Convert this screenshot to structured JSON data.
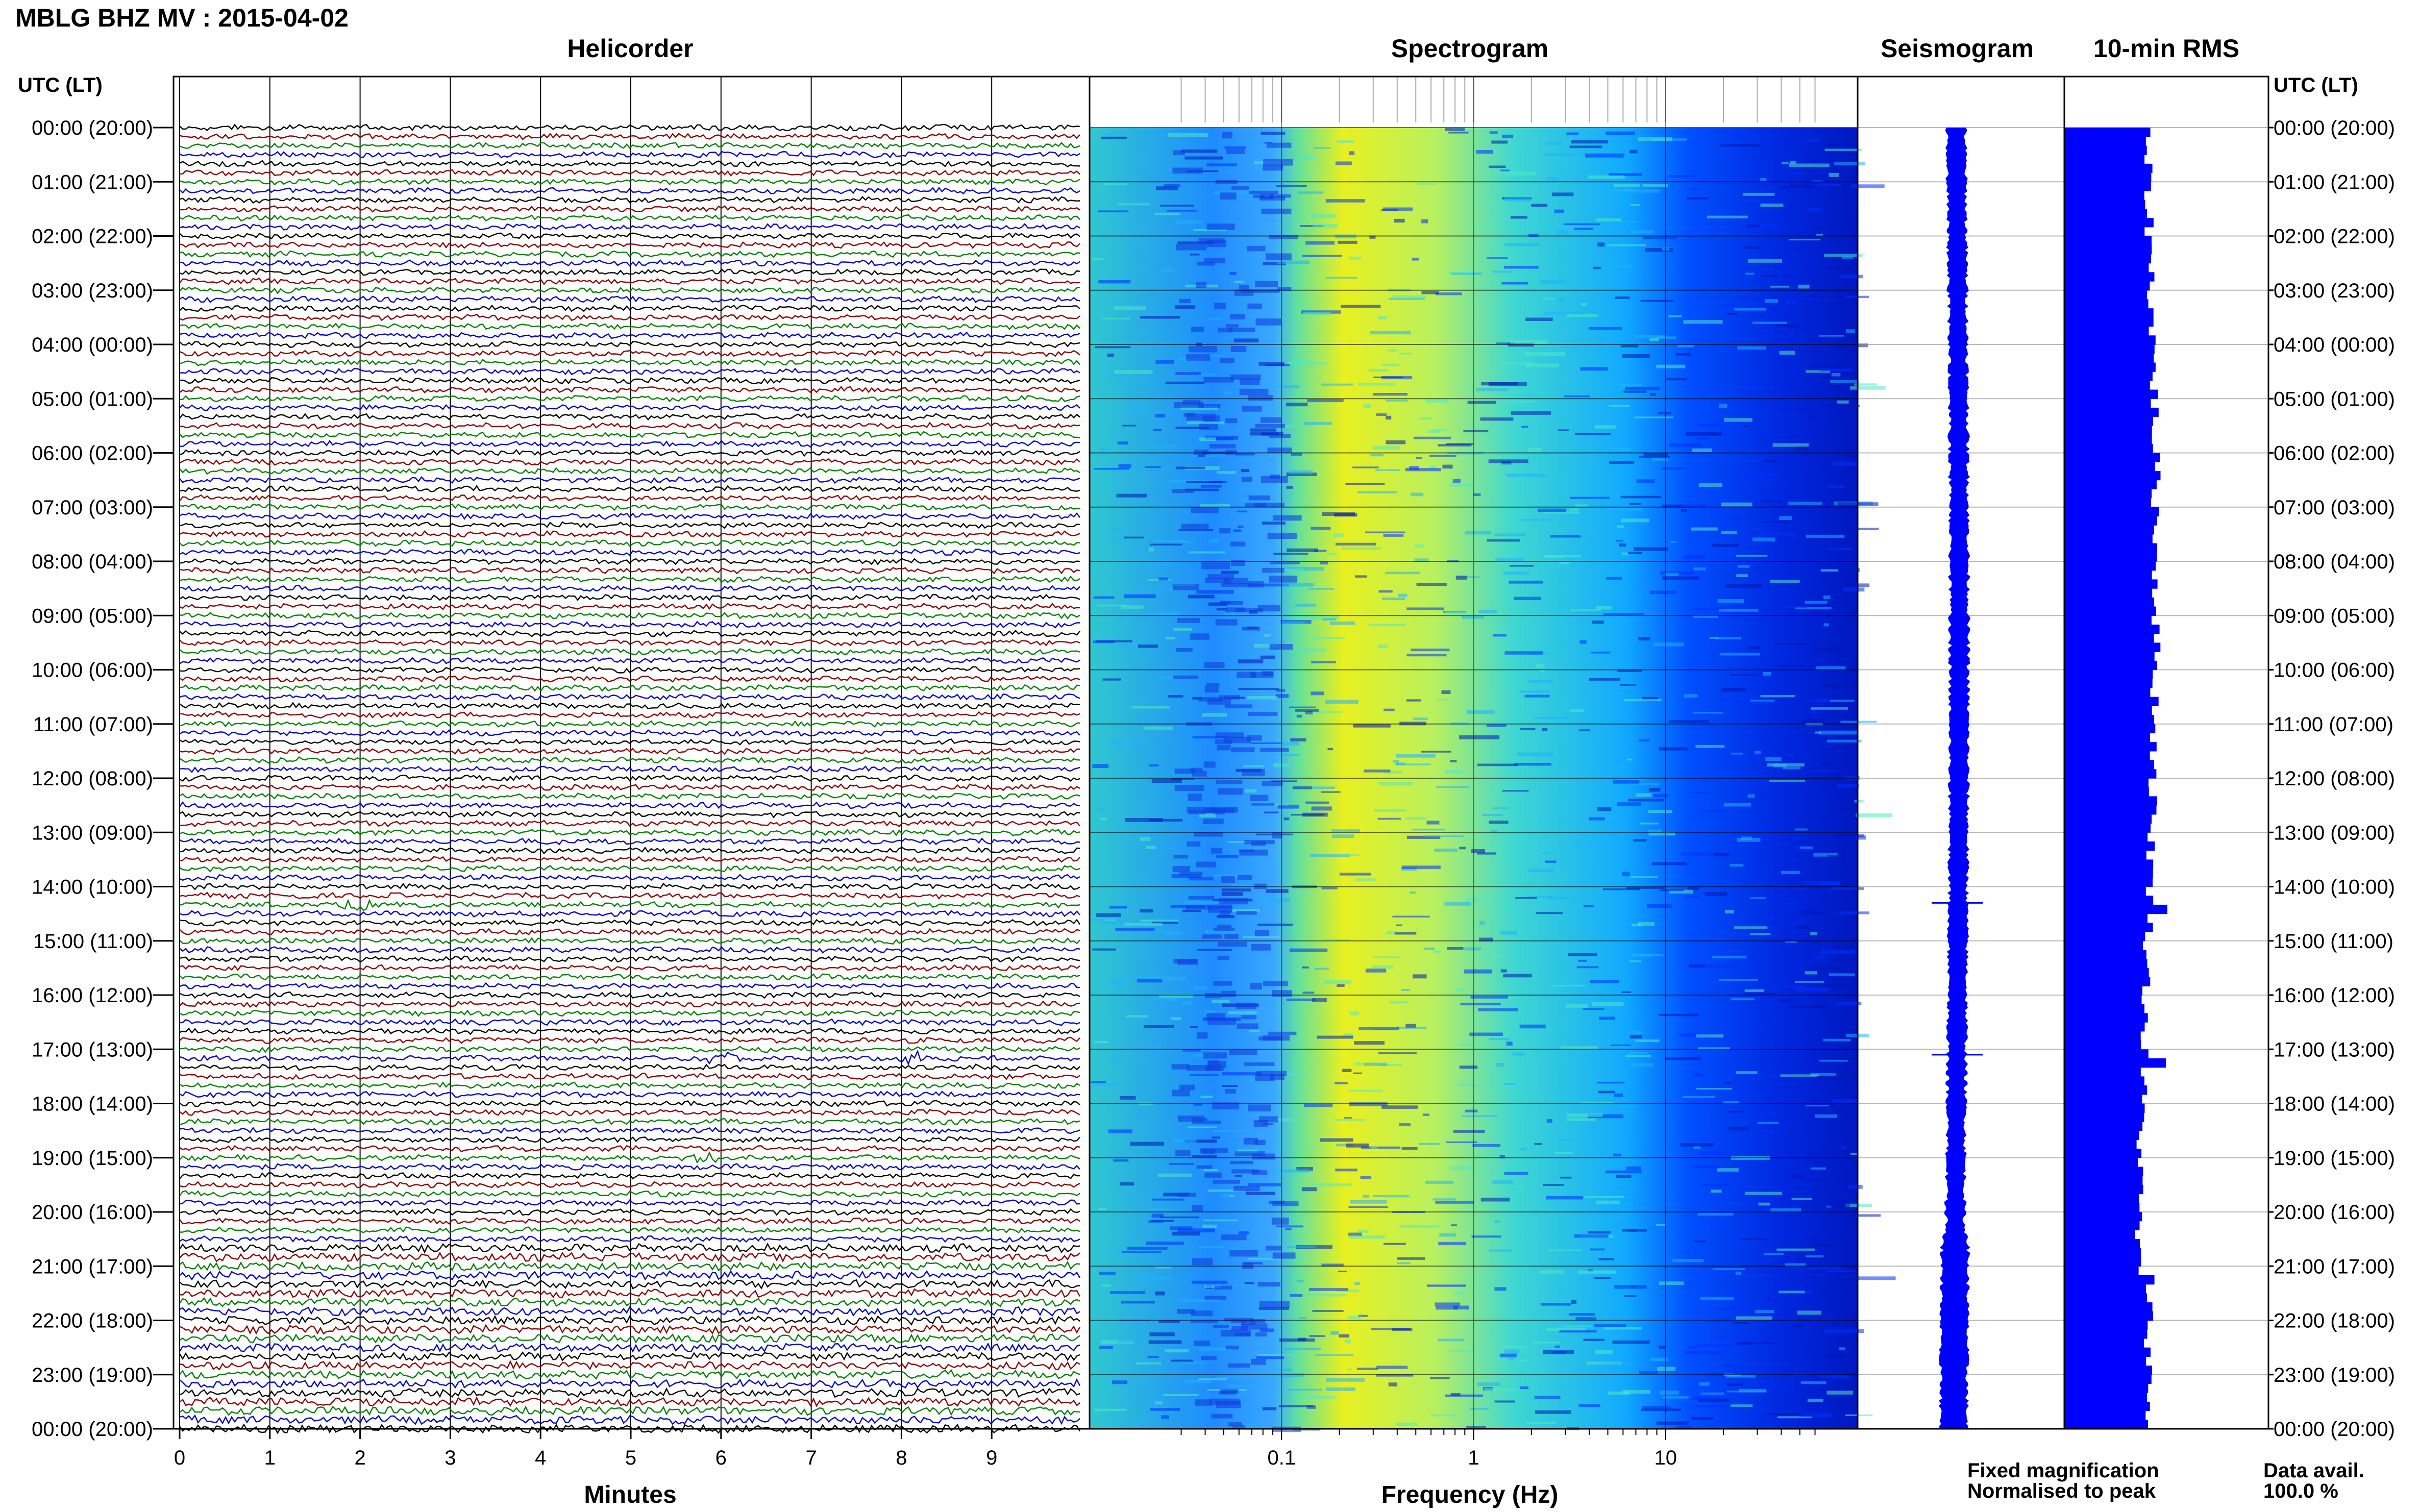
{
  "title": "MBLG BHZ MV : 2015-04-02",
  "timezone_label": "UTC (LT)",
  "panels": {
    "helicorder": "Helicorder",
    "spectrogram": "Spectrogram",
    "seismogram": "Seismogram",
    "rms": "10-min RMS"
  },
  "axis_labels": {
    "minutes": "Minutes",
    "frequency": "Frequency (Hz)"
  },
  "legend": {
    "fixed": "Fixed magnification",
    "normalised": "Normalised to peak",
    "fixed_color": "#0000ff",
    "normalised_color": "#ff0000"
  },
  "data_avail": {
    "label": "Data avail.",
    "value": "100.0 %"
  },
  "colors": {
    "trace_cycle": [
      "#000000",
      "#8b0000",
      "#008000",
      "#0000cd"
    ],
    "rms_bar": "#0000ff",
    "seismogram": "#0000ff",
    "spectrogram_ramp": [
      "#0000a0",
      "#0022ff",
      "#00aaff",
      "#40e0c0",
      "#e8f020"
    ]
  },
  "chart_data": [
    {
      "type": "helicorder",
      "title": "Helicorder",
      "xlabel": "Minutes",
      "xlim": [
        0,
        10
      ],
      "x_ticks": [
        "0",
        "1",
        "2",
        "3",
        "4",
        "5",
        "6",
        "7",
        "8",
        "9"
      ],
      "row_labels": [
        "00:00 (20:00)",
        "01:00 (21:00)",
        "02:00 (22:00)",
        "03:00 (23:00)",
        "04:00 (00:00)",
        "05:00 (01:00)",
        "06:00 (02:00)",
        "07:00 (03:00)",
        "08:00 (04:00)",
        "09:00 (05:00)",
        "10:00 (06:00)",
        "11:00 (07:00)",
        "12:00 (08:00)",
        "13:00 (09:00)",
        "14:00 (10:00)",
        "15:00 (11:00)",
        "16:00 (12:00)",
        "17:00 (13:00)",
        "18:00 (14:00)",
        "19:00 (15:00)",
        "20:00 (16:00)",
        "21:00 (17:00)",
        "22:00 (18:00)",
        "23:00 (19:00)",
        "00:00 (20:00)"
      ],
      "lines_per_hour": 6,
      "events_minutes": [
        {
          "hour": 14.3,
          "minute": 2.0
        },
        {
          "hour": 17.1,
          "minute": 6.0
        },
        {
          "hour": 17.1,
          "minute": 8.1
        },
        {
          "hour": 19.0,
          "minute": 5.8
        }
      ]
    },
    {
      "type": "heatmap",
      "title": "Spectrogram",
      "xlabel": "Frequency (Hz)",
      "xscale": "log",
      "xlim": [
        0.01,
        100
      ],
      "x_ticks": [
        "0.1",
        "1",
        "10"
      ],
      "peak_band_hz": [
        0.15,
        0.5
      ]
    },
    {
      "type": "line",
      "title": "Seismogram"
    },
    {
      "type": "bar",
      "title": "10-min RMS",
      "spikes_hour": [
        14.3,
        17.1
      ]
    }
  ]
}
